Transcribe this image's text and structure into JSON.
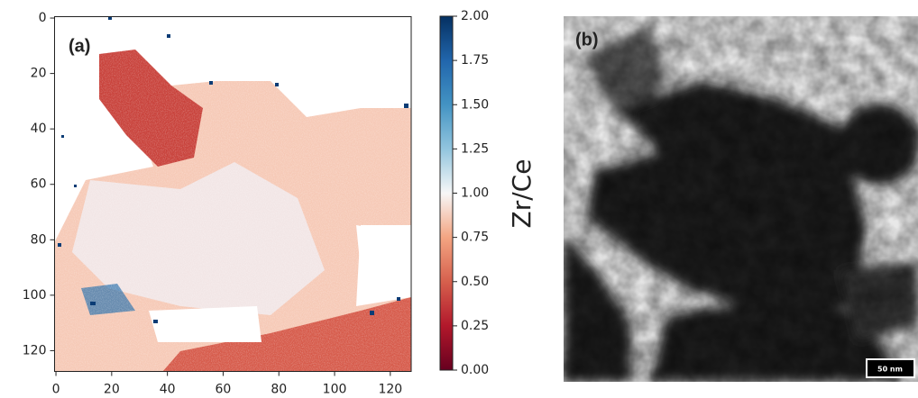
{
  "panel_a": {
    "label": "(a)",
    "xlim": [
      -0.5,
      127.5
    ],
    "ylim": [
      -0.5,
      127.5
    ],
    "xticks": [
      0,
      20,
      40,
      60,
      80,
      100,
      120
    ],
    "yticks": [
      0,
      20,
      40,
      60,
      80,
      100,
      120
    ]
  },
  "colorbar": {
    "label": "Zr/Ce",
    "lim": [
      0,
      2
    ],
    "ticks": [
      {
        "value": 0,
        "label": "0.00"
      },
      {
        "value": 0.25,
        "label": "0.25"
      },
      {
        "value": 0.5,
        "label": "0.50"
      },
      {
        "value": 0.75,
        "label": "0.75"
      },
      {
        "value": 1,
        "label": "1.00"
      },
      {
        "value": 1.25,
        "label": "1.25"
      },
      {
        "value": 1.5,
        "label": "1.50"
      },
      {
        "value": 1.75,
        "label": "1.75"
      },
      {
        "value": 2,
        "label": "2.00"
      }
    ]
  },
  "panel_b": {
    "label": "(b)",
    "scale_bar": "50 nm"
  }
}
